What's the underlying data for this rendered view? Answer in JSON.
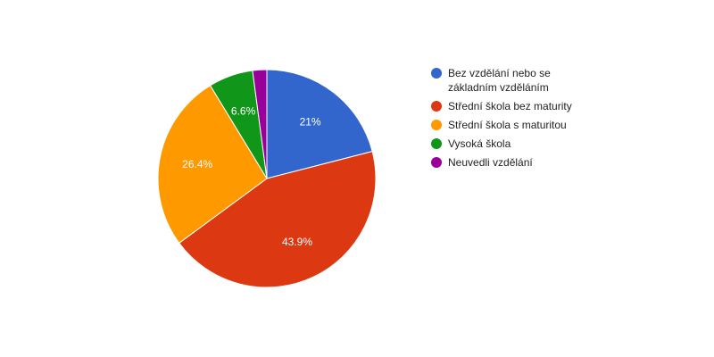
{
  "chart_data": {
    "type": "pie",
    "categories": [
      "Bez vzdělání nebo se základním vzděláním",
      "Střední škola bez maturity",
      "Střední škola s maturitou",
      "Vysoká škola",
      "Neuvedli vzdělání"
    ],
    "values": [
      21,
      43.9,
      26.4,
      6.6,
      2.1
    ],
    "value_labels": [
      "21%",
      "43.9%",
      "26.4%",
      "6.6%",
      null
    ],
    "colors": [
      "#3366cc",
      "#dc3912",
      "#ff9900",
      "#109618",
      "#990099"
    ],
    "legend": "right"
  }
}
